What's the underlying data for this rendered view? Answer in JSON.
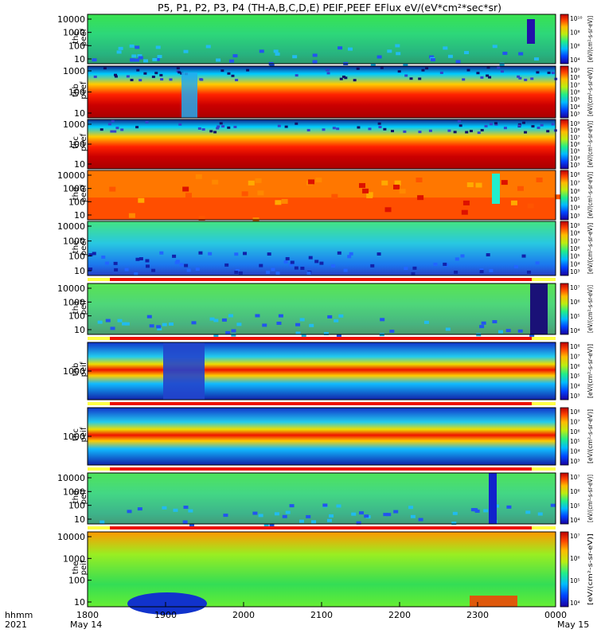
{
  "title": "P5, P1, P2, P3, P4 (TH-A,B,C,D,E) PEIF,PEEF EFlux eV/(eV*cm²*sec*sr)",
  "footer": {
    "row1_label": "hhmm",
    "row2_label": "2021",
    "start_date": "May 14",
    "end_date": "May 15"
  },
  "chart_data": {
    "type": "heatmap",
    "x_ticks": [
      "1800",
      "1900",
      "2000",
      "2100",
      "2200",
      "2300",
      "0000"
    ],
    "x_range_hhmm": [
      "1800",
      "0000"
    ],
    "colorbar_unit_label": "[eV/(cm²-s-sr-eV)]",
    "panels": [
      {
        "label1": "thc",
        "label2": "peef",
        "yticks": [
          "10000",
          "1000",
          "100",
          "10"
        ],
        "bg": "#33dd44",
        "cbar_ticks": [
          "10¹⁰",
          "10⁸",
          "10⁶",
          "10⁴"
        ],
        "cbar_label": "[eV/(cm²-s-sr-eV)]",
        "flag": false
      },
      {
        "label1": "thb",
        "label2": "peef",
        "yticks": [
          "1000",
          "100",
          "10"
        ],
        "bg": "#ee3311",
        "cbar_ticks": [
          "10⁹",
          "10⁸",
          "10⁷",
          "10⁶",
          "10⁵",
          "10⁴",
          "10³"
        ],
        "cbar_label": "[eV/(cm²-s-sr-eV)]",
        "flag": false
      },
      {
        "label1": "thc",
        "label2": "peef",
        "yticks": [
          "1000",
          "100",
          "10"
        ],
        "bg": "#dd2211",
        "cbar_ticks": [
          "10⁹",
          "10⁸",
          "10⁷",
          "10⁶",
          "10⁵",
          "10⁴",
          "10³"
        ],
        "cbar_label": "[eV/(cm²-s-sr-eV)]",
        "flag": false
      },
      {
        "label1": "thd",
        "label2": "peef",
        "yticks": [
          "10000",
          "1000",
          "100",
          "10"
        ],
        "bg": "#ff7700",
        "cbar_ticks": [
          "10⁸",
          "10⁷",
          "10⁶",
          "10⁵",
          "10⁴",
          "10³"
        ],
        "cbar_label": "[eV/(cm²-s-sr-eV)]",
        "flag": false
      },
      {
        "label1": "the",
        "label2": "peef",
        "yticks": [
          "10000",
          "1000",
          "100",
          "10"
        ],
        "bg": "#44bbee",
        "cbar_ticks": [
          "10⁹",
          "10⁸",
          "10⁷",
          "10⁶",
          "10⁵",
          "10⁴",
          "10³"
        ],
        "cbar_label": "[eV/(cm²-s-sr-eV)]",
        "flag": true
      },
      {
        "label1": "tha",
        "label2": "peif",
        "yticks": [
          "10000",
          "1000",
          "100",
          "10"
        ],
        "bg": "#66dd44",
        "cbar_ticks": [
          "10⁷",
          "10⁶",
          "10⁵",
          "10⁴"
        ],
        "cbar_label": "[eV/(cm²-s-sr-eV)]",
        "flag": true
      },
      {
        "label1": "thb",
        "label2": "peif",
        "yticks": [
          "1000"
        ],
        "bg": "#2255ee",
        "cbar_ticks": [
          "10⁸",
          "10⁷",
          "10⁶",
          "10⁵",
          "10⁴",
          "10³"
        ],
        "cbar_label": "[eV/(cm²-s-sr-eV)]",
        "flag": true
      },
      {
        "label1": "thc",
        "label2": "peif",
        "yticks": [
          "1000"
        ],
        "bg": "#2255ee",
        "cbar_ticks": [
          "10⁸",
          "10⁷",
          "10⁶",
          "10⁵",
          "10⁴",
          "10³"
        ],
        "cbar_label": "[eV/(cm²-s-sr-eV)]",
        "flag": true
      },
      {
        "label1": "thd",
        "label2": "peif",
        "yticks": [
          "10000",
          "1000",
          "100",
          "10"
        ],
        "bg": "#55dd55",
        "cbar_ticks": [
          "10⁷",
          "10⁶",
          "10⁵",
          "10⁴"
        ],
        "cbar_label": "[eV/(cm²-s-sr-eV)]",
        "flag": true
      },
      {
        "label1": "the",
        "label2": "peif",
        "yticks": [
          "10000",
          "1000",
          "100",
          "10"
        ],
        "bg": "#88ee33",
        "cbar_ticks": [
          "10⁷",
          "10⁶",
          "10⁵",
          "10⁴"
        ],
        "cbar_label": "[eV/(cm²-s-sr-eV)]",
        "flag": false
      }
    ]
  }
}
